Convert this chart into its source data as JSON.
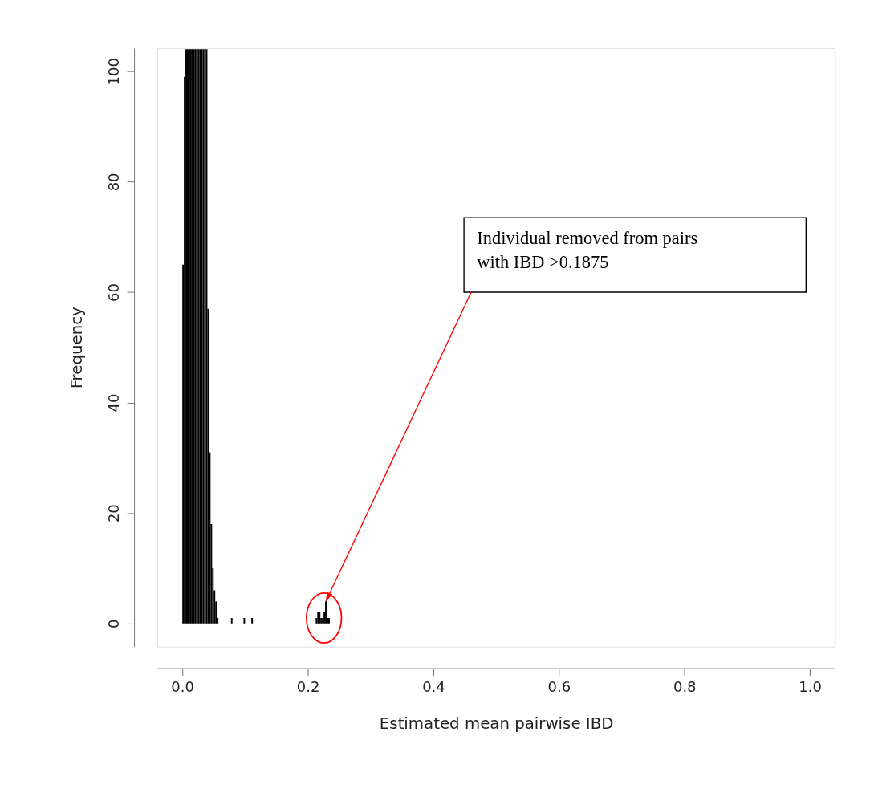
{
  "chart_data": {
    "type": "histogram",
    "xlabel": "Estimated mean pairwise IBD",
    "ylabel": "Frequency",
    "bins": [
      0,
      0.0025,
      0.005,
      0.0075,
      0.01,
      0.0125,
      0.015,
      0.0175,
      0.02,
      0.0225,
      0.025,
      0.0275,
      0.03,
      0.0325,
      0.035,
      0.0375,
      0.04,
      0.0425,
      0.045,
      0.0475,
      0.05,
      0.0525,
      0.055,
      0.0575,
      0.06,
      0.0625,
      0.065,
      0.0675,
      0.07,
      0.0725,
      0.075,
      0.0775,
      0.08,
      0.0825,
      0.085,
      0.0875,
      0.09,
      0.0925,
      0.095,
      0.0975,
      0.1,
      0.1025,
      0.105,
      0.1075,
      0.11,
      0.1125,
      0.115,
      0.1175,
      0.12,
      0.1225,
      0.125,
      0.1275,
      0.13,
      0.1325,
      0.135,
      0.1375,
      0.14,
      0.1425,
      0.145,
      0.1475,
      0.15,
      0.1525,
      0.155,
      0.1575,
      0.16,
      0.1625,
      0.165,
      0.1675,
      0.17,
      0.1725,
      0.175,
      0.1775,
      0.18,
      0.1825,
      0.185,
      0.1875,
      0.19,
      0.1925,
      0.195,
      0.1975,
      0.2,
      0.2025,
      0.205,
      0.2075,
      0.21,
      0.2125,
      0.215,
      0.2175,
      0.22,
      0.2225,
      0.225,
      0.2275,
      0.23,
      0.2325,
      0.235
    ],
    "values": [
      65,
      99,
      104,
      104,
      104,
      104,
      104,
      104,
      104,
      104,
      104,
      104,
      104,
      104,
      104,
      104,
      57,
      31,
      18,
      10,
      6,
      4,
      1,
      0,
      0,
      0,
      0,
      0,
      0,
      0,
      0,
      1,
      0,
      0,
      0,
      0,
      0,
      0,
      0,
      1,
      0,
      0,
      0,
      0,
      1,
      0,
      0,
      0,
      0,
      0,
      0,
      0,
      0,
      0,
      0,
      0,
      0,
      0,
      0,
      0,
      0,
      0,
      0,
      0,
      0,
      0,
      0,
      0,
      0,
      0,
      0,
      0,
      0,
      0,
      0,
      0,
      0,
      0,
      0,
      0,
      0,
      0,
      0,
      0,
      0,
      1,
      2,
      2,
      1,
      1,
      2,
      4,
      1,
      1
    ],
    "color": "#000000",
    "xlim": [
      -0.04,
      1.04
    ],
    "ylim": [
      -4.2,
      104.2
    ],
    "xticks": [
      {
        "value": 0,
        "label": "0.0"
      },
      {
        "value": 0.2,
        "label": "0.2"
      },
      {
        "value": 0.4,
        "label": "0.4"
      },
      {
        "value": 0.6,
        "label": "0.6"
      },
      {
        "value": 0.8,
        "label": "0.8"
      },
      {
        "value": 1,
        "label": "1.0"
      }
    ],
    "yticks": [
      0,
      20,
      40,
      60,
      80,
      100
    ],
    "grid": false,
    "annotations": [
      {
        "text": "Individual removed from pairs\nwith IBD >0.1875",
        "x": 0.22875,
        "y": 4
      }
    ]
  }
}
